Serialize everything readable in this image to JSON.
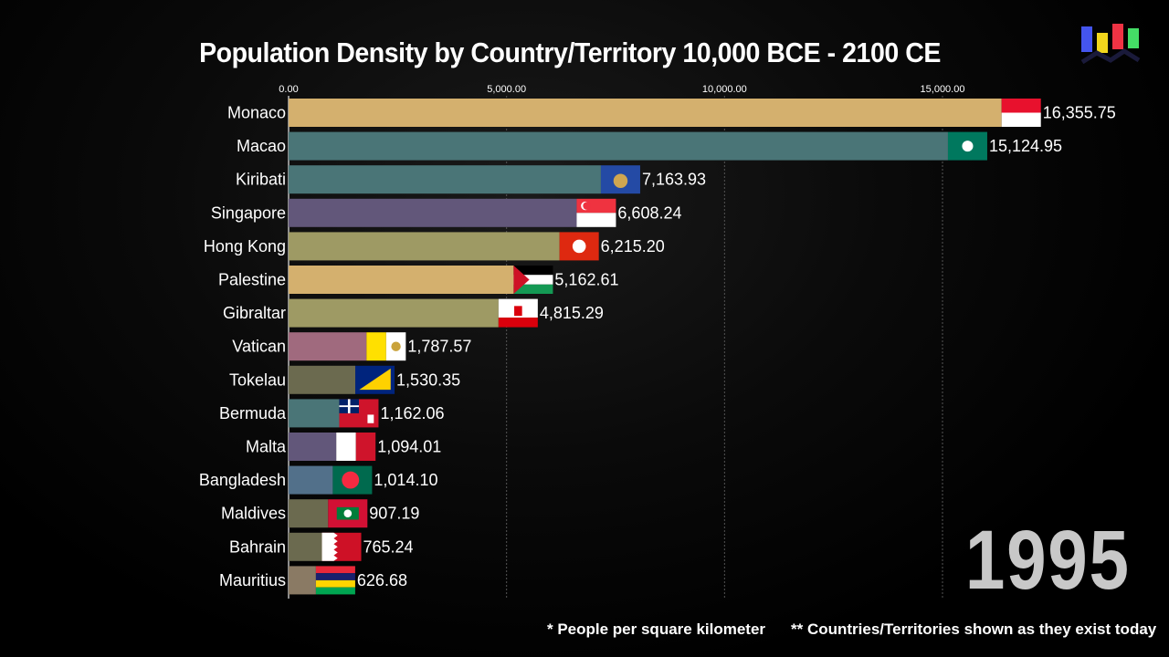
{
  "title": "Population Density by Country/Territory 10,000 BCE - 2100 CE",
  "year": "1995",
  "footnotes": [
    "* People per square kilometer",
    "** Countries/Territories shown as they exist today"
  ],
  "colors": {
    "background": "#000000",
    "text": "#ffffff",
    "year": "#c8c8c8",
    "gridline": "#555555"
  },
  "chart_data": {
    "type": "bar",
    "orientation": "horizontal",
    "title": "Population Density by Country/Territory 10,000 BCE - 2100 CE",
    "xlim": [
      0,
      18500
    ],
    "x_ticks": [
      0,
      5000,
      10000,
      15000
    ],
    "x_tick_labels": [
      "0.00",
      "5,000.00",
      "10,000.00",
      "15,000.00"
    ],
    "grid": true,
    "categories": [
      "Monaco",
      "Macao",
      "Kiribati",
      "Singapore",
      "Hong Kong",
      "Palestine",
      "Gibraltar",
      "Vatican",
      "Tokelau",
      "Bermuda",
      "Malta",
      "Bangladesh",
      "Maldives",
      "Bahrain",
      "Mauritius"
    ],
    "values": [
      16355.75,
      15124.95,
      7163.93,
      6608.24,
      6215.2,
      5162.61,
      4815.29,
      1787.57,
      1530.35,
      1162.06,
      1094.01,
      1014.1,
      907.19,
      765.24,
      626.68
    ],
    "value_labels": [
      "16,355.75",
      "15,124.95",
      "7,163.93",
      "6,608.24",
      "6,215.20",
      "5,162.61",
      "4,815.29",
      "1,787.57",
      "1,530.35",
      "1,162.06",
      "1,094.01",
      "1,014.10",
      "907.19",
      "765.24",
      "626.68"
    ],
    "bar_colors": [
      "#d4b06e",
      "#4a7577",
      "#4a7577",
      "#62577a",
      "#9e9a64",
      "#d4b06e",
      "#9e9a64",
      "#a06a7e",
      "#6b6a4f",
      "#4a7577",
      "#62577a",
      "#52708a",
      "#6b6a4f",
      "#6b6a4f",
      "#8a7a64"
    ]
  }
}
